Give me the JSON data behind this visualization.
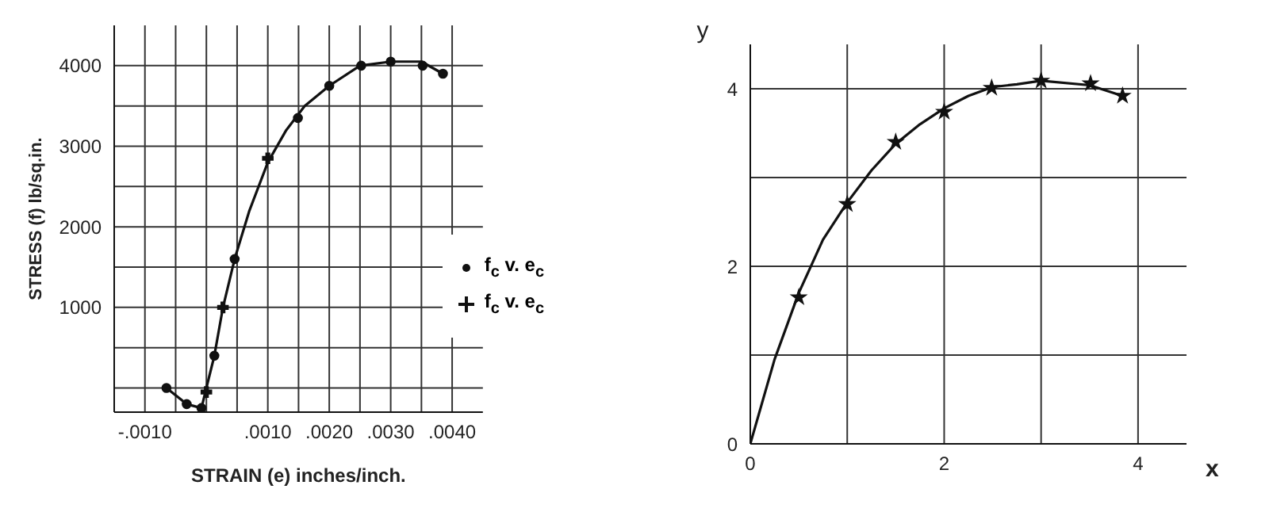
{
  "chart_data": [
    {
      "type": "scatter",
      "xlabel": "STRAIN (e) inches/inch.",
      "ylabel": "STRESS (f) lb/sq.in.",
      "xlim": [
        -0.0015,
        0.0045
      ],
      "ylim": [
        -300,
        4500
      ],
      "xticks": [
        {
          "value": -0.001,
          "label": "-.0010"
        },
        {
          "value": -0.0005,
          "label": null
        },
        {
          "value": 0,
          "label": null
        },
        {
          "value": 0.0005,
          "label": null
        },
        {
          "value": 0.001,
          "label": ".0010"
        },
        {
          "value": 0.0015,
          "label": null
        },
        {
          "value": 0.002,
          "label": ".0020"
        },
        {
          "value": 0.0025,
          "label": null
        },
        {
          "value": 0.003,
          "label": ".0030"
        },
        {
          "value": 0.0035,
          "label": null
        },
        {
          "value": 0.004,
          "label": ".0040"
        }
      ],
      "yticks": [
        {
          "value": 0,
          "label": null
        },
        {
          "value": 500,
          "label": null
        },
        1000,
        {
          "value": 1500,
          "label": null
        },
        2000,
        {
          "value": 2500,
          "label": null
        },
        3000,
        {
          "value": 3500,
          "label": null
        },
        4000
      ],
      "grid": true,
      "legend": "right",
      "series": [
        {
          "type": "line",
          "color": "#111111",
          "marker": "none",
          "x": [
            -0.00065,
            -0.00032,
            -8e-05,
            0,
            0.00013,
            0.00027,
            0.00046,
            0.0007,
            0.001,
            0.0013,
            0.0016,
            0.002,
            0.0025,
            0.003,
            0.0035,
            0.00385
          ],
          "values": [
            0,
            -200,
            -250,
            0,
            400,
            1000,
            1600,
            2200,
            2800,
            3200,
            3500,
            3750,
            4000,
            4050,
            4050,
            3900
          ]
        },
        {
          "name": "f$_{c}$ v. e$_{c}$",
          "color": "#111111",
          "marker": "circle",
          "x": [
            -0.00065,
            -0.00032,
            -8e-05,
            0.00013,
            0.00046,
            0.00149,
            0.002,
            0.00252,
            0.003,
            0.00352,
            0.00385
          ],
          "values": [
            0,
            -200,
            -250,
            400,
            1600,
            3350,
            3750,
            4000,
            4050,
            4000,
            3900
          ]
        },
        {
          "name": "f$_{c}$ v. e$_{c}$",
          "color": "#111111",
          "marker": "cross",
          "x": [
            0,
            0.00027,
            0.001
          ],
          "values": [
            -50,
            1000,
            2850
          ]
        }
      ]
    },
    {
      "type": "scatter",
      "xlabel": "x",
      "ylabel": "y",
      "xlim": [
        0,
        4.5
      ],
      "ylim": [
        0,
        4.5
      ],
      "xticks": [
        0,
        {
          "value": 1,
          "label": null
        },
        2,
        {
          "value": 3,
          "label": null
        },
        4
      ],
      "yticks": [
        0,
        {
          "value": 1,
          "label": null
        },
        2,
        {
          "value": 3,
          "label": null
        },
        4
      ],
      "grid": true,
      "series": [
        {
          "type": "line",
          "color": "#111111",
          "marker": "none",
          "x": [
            0,
            0.25,
            0.5,
            0.75,
            1,
            1.25,
            1.5,
            1.75,
            2,
            2.25,
            2.5,
            2.75,
            3,
            3.5,
            3.84
          ],
          "values": [
            0,
            0.95,
            1.7,
            2.3,
            2.72,
            3.08,
            3.38,
            3.6,
            3.78,
            3.92,
            4.02,
            4.05,
            4.09,
            4.04,
            3.92
          ]
        },
        {
          "color": "#111111",
          "marker": "star",
          "x": [
            0.5,
            1,
            1.5,
            2,
            2.49,
            3,
            3.51,
            3.84
          ],
          "values": [
            1.65,
            2.7,
            3.4,
            3.74,
            4.01,
            4.09,
            4.06,
            3.92
          ]
        }
      ]
    }
  ]
}
